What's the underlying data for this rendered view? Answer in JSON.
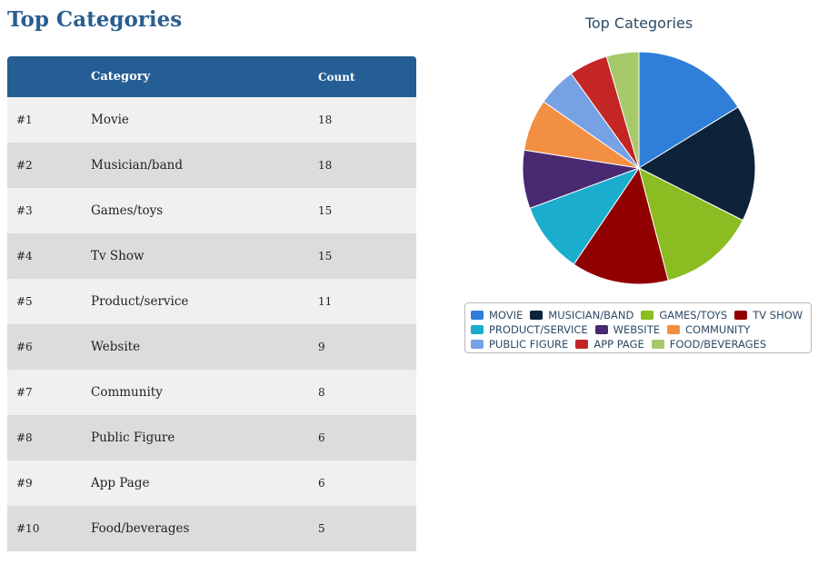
{
  "page": {
    "title": "Top Categories"
  },
  "table": {
    "headers": {
      "rank": "",
      "category": "Category",
      "count": "Count"
    },
    "rows": [
      {
        "rank": "#1",
        "category": "Movie",
        "count": "18"
      },
      {
        "rank": "#2",
        "category": "Musician/band",
        "count": "18"
      },
      {
        "rank": "#3",
        "category": "Games/toys",
        "count": "15"
      },
      {
        "rank": "#4",
        "category": "Tv Show",
        "count": "15"
      },
      {
        "rank": "#5",
        "category": "Product/service",
        "count": "11"
      },
      {
        "rank": "#6",
        "category": "Website",
        "count": "9"
      },
      {
        "rank": "#7",
        "category": "Community",
        "count": "8"
      },
      {
        "rank": "#8",
        "category": "Public Figure",
        "count": "6"
      },
      {
        "rank": "#9",
        "category": "App Page",
        "count": "6"
      },
      {
        "rank": "#10",
        "category": "Food/beverages",
        "count": "5"
      }
    ]
  },
  "chart_data": {
    "type": "pie",
    "title": "Top Categories",
    "legend_position": "bottom",
    "categories": [
      "MOVIE",
      "MUSICIAN/BAND",
      "GAMES/TOYS",
      "TV SHOW",
      "PRODUCT/SERVICE",
      "WEBSITE",
      "COMMUNITY",
      "PUBLIC FIGURE",
      "APP PAGE",
      "FOOD/BEVERAGES"
    ],
    "values": [
      18,
      18,
      15,
      15,
      11,
      9,
      8,
      6,
      6,
      5
    ],
    "colors": [
      "#2f7ed8",
      "#0d233a",
      "#8bbc21",
      "#910000",
      "#1aadce",
      "#492970",
      "#f28f43",
      "#77a1e5",
      "#c42525",
      "#a6c96a"
    ]
  }
}
